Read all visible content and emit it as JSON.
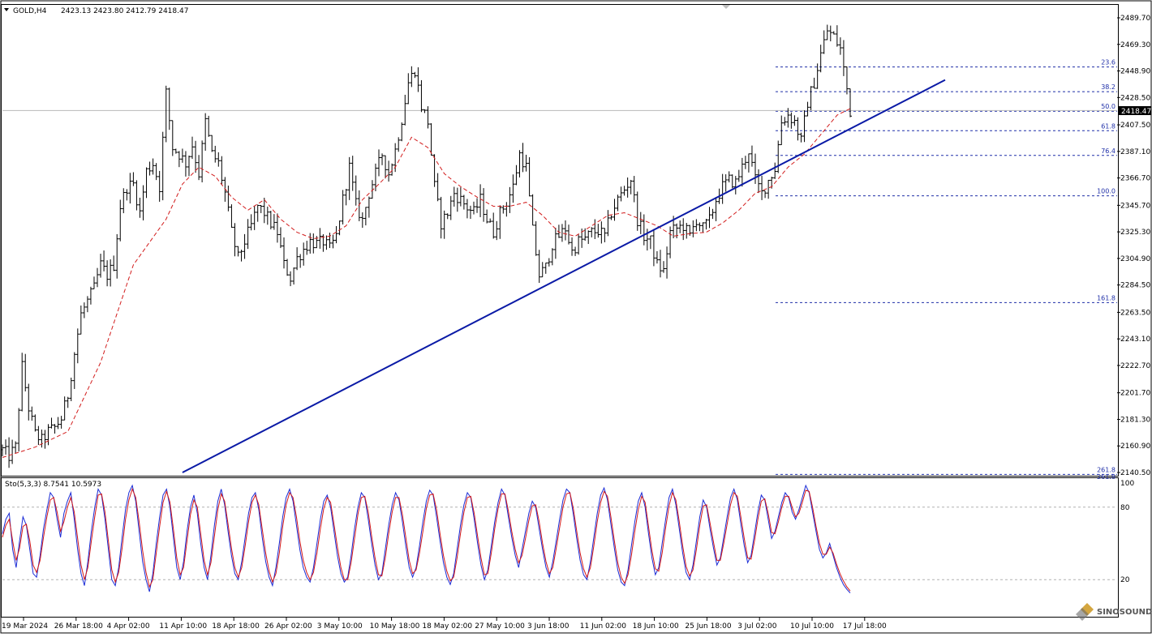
{
  "header": {
    "symbol": "GOLD,H4",
    "ohlc": "2423.13 2423.80 2412.79 2418.47"
  },
  "current_price": "2418.47",
  "indicator_label": "Sto(5,3,3) 8.7541 10.5973",
  "watermark": "SINOSOUND",
  "colors": {
    "candles": "#000000",
    "ma": "#d21c1c",
    "trendline": "#0a1aa6",
    "fib": "#1f2fa8",
    "stoch_main": "#1a2bd6",
    "stoch_signal": "#d41818"
  },
  "chart_data": [
    {
      "type": "candlestick",
      "title": "GOLD,H4",
      "ylim": [
        2140.5,
        2489.7
      ],
      "price_ticks": [
        "2489.70",
        "2469.30",
        "2448.90",
        "2428.50",
        "2407.50",
        "2387.10",
        "2366.70",
        "2345.70",
        "2325.30",
        "2304.90",
        "2284.50",
        "2263.50",
        "2243.10",
        "2222.70",
        "2201.70",
        "2181.30",
        "2160.90",
        "2140.50"
      ],
      "time_labels": [
        "19 Mar 2024",
        "26 Mar 18:00",
        "4 Apr 02:00",
        "11 Apr 10:00",
        "18 Apr 18:00",
        "26 Apr 02:00",
        "3 May 10:00",
        "10 May 18:00",
        "18 May 02:00",
        "27 May 10:00",
        "3 Jun 18:00",
        "11 Jun 02:00",
        "18 Jun 10:00",
        "25 Jun 18:00",
        "3 Jul 02:00",
        "10 Jul 10:00",
        "17 Jul 18:00"
      ],
      "price_path": [
        [
          0,
          2158
        ],
        [
          2,
          2153
        ],
        [
          4,
          2160
        ],
        [
          6,
          2222
        ],
        [
          8,
          2190
        ],
        [
          10,
          2170
        ],
        [
          12,
          2165
        ],
        [
          14,
          2172
        ],
        [
          16,
          2175
        ],
        [
          18,
          2182
        ],
        [
          20,
          2200
        ],
        [
          22,
          2232
        ],
        [
          24,
          2262
        ],
        [
          26,
          2272
        ],
        [
          28,
          2282
        ],
        [
          30,
          2300
        ],
        [
          32,
          2292
        ],
        [
          34,
          2300
        ],
        [
          36,
          2345
        ],
        [
          38,
          2360
        ],
        [
          40,
          2362
        ],
        [
          42,
          2340
        ],
        [
          44,
          2372
        ],
        [
          46,
          2378
        ],
        [
          48,
          2360
        ],
        [
          50,
          2432
        ],
        [
          52,
          2390
        ],
        [
          54,
          2385
        ],
        [
          56,
          2378
        ],
        [
          58,
          2392
        ],
        [
          60,
          2370
        ],
        [
          62,
          2410
        ],
        [
          64,
          2385
        ],
        [
          66,
          2378
        ],
        [
          68,
          2355
        ],
        [
          70,
          2325
        ],
        [
          72,
          2305
        ],
        [
          74,
          2318
        ],
        [
          76,
          2330
        ],
        [
          78,
          2345
        ],
        [
          80,
          2340
        ],
        [
          82,
          2332
        ],
        [
          84,
          2325
        ],
        [
          86,
          2300
        ],
        [
          88,
          2290
        ],
        [
          90,
          2305
        ],
        [
          92,
          2312
        ],
        [
          94,
          2318
        ],
        [
          96,
          2316
        ],
        [
          98,
          2318
        ],
        [
          100,
          2312
        ],
        [
          102,
          2322
        ],
        [
          104,
          2350
        ],
        [
          106,
          2375
        ],
        [
          108,
          2346
        ],
        [
          110,
          2334
        ],
        [
          112,
          2355
        ],
        [
          114,
          2370
        ],
        [
          116,
          2385
        ],
        [
          118,
          2370
        ],
        [
          120,
          2388
        ],
        [
          122,
          2412
        ],
        [
          124,
          2440
        ],
        [
          126,
          2450
        ],
        [
          128,
          2422
        ],
        [
          130,
          2410
        ],
        [
          132,
          2360
        ],
        [
          134,
          2332
        ],
        [
          136,
          2340
        ],
        [
          138,
          2355
        ],
        [
          140,
          2350
        ],
        [
          142,
          2344
        ],
        [
          144,
          2340
        ],
        [
          146,
          2350
        ],
        [
          148,
          2335
        ],
        [
          150,
          2325
        ],
        [
          152,
          2340
        ],
        [
          154,
          2348
        ],
        [
          156,
          2360
        ],
        [
          158,
          2385
        ],
        [
          160,
          2375
        ],
        [
          162,
          2326
        ],
        [
          164,
          2292
        ],
        [
          166,
          2298
        ],
        [
          168,
          2316
        ],
        [
          170,
          2322
        ],
        [
          172,
          2328
        ],
        [
          174,
          2310
        ],
        [
          176,
          2318
        ],
        [
          178,
          2320
        ],
        [
          180,
          2325
        ],
        [
          182,
          2326
        ],
        [
          184,
          2322
        ],
        [
          186,
          2340
        ],
        [
          188,
          2350
        ],
        [
          190,
          2358
        ],
        [
          192,
          2366
        ],
        [
          194,
          2335
        ],
        [
          196,
          2322
        ],
        [
          198,
          2318
        ],
        [
          200,
          2300
        ],
        [
          202,
          2295
        ],
        [
          204,
          2325
        ],
        [
          206,
          2328
        ],
        [
          208,
          2330
        ],
        [
          210,
          2322
        ],
        [
          212,
          2335
        ],
        [
          214,
          2328
        ],
        [
          216,
          2334
        ],
        [
          218,
          2350
        ],
        [
          220,
          2360
        ],
        [
          222,
          2365
        ],
        [
          224,
          2363
        ],
        [
          226,
          2375
        ],
        [
          228,
          2388
        ],
        [
          230,
          2365
        ],
        [
          232,
          2355
        ],
        [
          234,
          2365
        ],
        [
          236,
          2374
        ],
        [
          238,
          2410
        ],
        [
          240,
          2415
        ],
        [
          242,
          2410
        ],
        [
          244,
          2395
        ],
        [
          246,
          2425
        ],
        [
          248,
          2440
        ],
        [
          250,
          2462
        ],
        [
          252,
          2480
        ],
        [
          254,
          2475
        ],
        [
          256,
          2466
        ],
        [
          258,
          2435
        ],
        [
          259,
          2418
        ]
      ],
      "candle_count": 260,
      "moving_average": [
        [
          0,
          2152
        ],
        [
          10,
          2160
        ],
        [
          20,
          2172
        ],
        [
          30,
          2225
        ],
        [
          40,
          2300
        ],
        [
          50,
          2335
        ],
        [
          55,
          2362
        ],
        [
          60,
          2375
        ],
        [
          65,
          2368
        ],
        [
          70,
          2352
        ],
        [
          75,
          2342
        ],
        [
          80,
          2350
        ],
        [
          85,
          2335
        ],
        [
          90,
          2325
        ],
        [
          95,
          2320
        ],
        [
          100,
          2322
        ],
        [
          105,
          2330
        ],
        [
          110,
          2350
        ],
        [
          115,
          2362
        ],
        [
          120,
          2375
        ],
        [
          125,
          2398
        ],
        [
          130,
          2390
        ],
        [
          135,
          2370
        ],
        [
          140,
          2360
        ],
        [
          145,
          2352
        ],
        [
          150,
          2345
        ],
        [
          155,
          2345
        ],
        [
          160,
          2348
        ],
        [
          165,
          2338
        ],
        [
          170,
          2325
        ],
        [
          175,
          2322
        ],
        [
          180,
          2330
        ],
        [
          185,
          2338
        ],
        [
          190,
          2340
        ],
        [
          195,
          2335
        ],
        [
          200,
          2330
        ],
        [
          205,
          2322
        ],
        [
          210,
          2324
        ],
        [
          215,
          2325
        ],
        [
          220,
          2332
        ],
        [
          225,
          2342
        ],
        [
          230,
          2355
        ],
        [
          235,
          2360
        ],
        [
          240,
          2375
        ],
        [
          245,
          2385
        ],
        [
          250,
          2400
        ],
        [
          255,
          2415
        ],
        [
          259,
          2420
        ]
      ],
      "trendline": {
        "start": [
          55,
          2140.5
        ],
        "end": [
          288,
          2442
        ]
      },
      "fibonacci": {
        "levels": [
          {
            "label": "23.6",
            "price": 2452
          },
          {
            "label": "38.2",
            "price": 2433
          },
          {
            "label": "50.0",
            "price": 2418
          },
          {
            "label": "61.8",
            "price": 2403
          },
          {
            "label": "76.4",
            "price": 2384
          },
          {
            "label": "100.0",
            "price": 2353
          },
          {
            "label": "161.8",
            "price": 2271
          },
          {
            "label": "261.8",
            "price": 2139
          }
        ]
      }
    },
    {
      "type": "line",
      "title": "Sto(5,3,3) 8.7541 10.5973",
      "ylim": [
        0,
        100
      ],
      "levels": [
        "100",
        "80",
        "20"
      ],
      "series": [
        {
          "name": "Main",
          "values": [
            58,
            70,
            75,
            45,
            30,
            52,
            72,
            65,
            45,
            25,
            22,
            40,
            62,
            78,
            92,
            88,
            70,
            55,
            75,
            85,
            92,
            70,
            45,
            25,
            15,
            35,
            60,
            80,
            95,
            90,
            70,
            45,
            20,
            15,
            30,
            55,
            78,
            92,
            98,
            85,
            60,
            35,
            20,
            10,
            25,
            50,
            72,
            90,
            95,
            80,
            55,
            30,
            20,
            35,
            60,
            80,
            90,
            75,
            50,
            30,
            20,
            40,
            65,
            85,
            95,
            82,
            60,
            40,
            25,
            20,
            35,
            55,
            75,
            88,
            92,
            78,
            55,
            35,
            22,
            15,
            30,
            50,
            72,
            88,
            95,
            85,
            65,
            45,
            30,
            22,
            18,
            30,
            50,
            70,
            85,
            90,
            80,
            60,
            40,
            25,
            18,
            22,
            40,
            62,
            80,
            92,
            88,
            70,
            50,
            32,
            20,
            25,
            45,
            65,
            82,
            92,
            86,
            68,
            48,
            30,
            22,
            30,
            48,
            68,
            85,
            94,
            90,
            72,
            52,
            34,
            22,
            16,
            25,
            45,
            65,
            82,
            92,
            88,
            70,
            50,
            32,
            20,
            28,
            48,
            68,
            84,
            95,
            90,
            72,
            55,
            40,
            30,
            45,
            60,
            75,
            85,
            80,
            62,
            45,
            30,
            22,
            35,
            52,
            70,
            86,
            95,
            92,
            74,
            54,
            36,
            24,
            20,
            35,
            55,
            75,
            90,
            96,
            86,
            66,
            46,
            28,
            18,
            15,
            28,
            48,
            68,
            85,
            92,
            80,
            58,
            38,
            24,
            30,
            50,
            70,
            88,
            95,
            82,
            62,
            42,
            26,
            20,
            32,
            52,
            72,
            86,
            80,
            62,
            46,
            32,
            38,
            55,
            72,
            88,
            95,
            86,
            66,
            48,
            34,
            40,
            58,
            76,
            90,
            86,
            70,
            54,
            60,
            72,
            84,
            92,
            88,
            76,
            70,
            78,
            88,
            98,
            92,
            76,
            60,
            45,
            38,
            42,
            50,
            40,
            30,
            22,
            16,
            12,
            9
          ]
        },
        {
          "name": "Signal",
          "values": [
            55,
            65,
            70,
            52,
            36,
            46,
            64,
            66,
            52,
            32,
            26,
            36,
            55,
            72,
            86,
            88,
            76,
            60,
            68,
            80,
            88,
            76,
            54,
            32,
            20,
            30,
            52,
            72,
            90,
            91,
            76,
            52,
            28,
            18,
            26,
            46,
            70,
            86,
            95,
            88,
            68,
            44,
            26,
            14,
            20,
            42,
            64,
            84,
            93,
            84,
            62,
            38,
            24,
            30,
            52,
            74,
            86,
            80,
            58,
            36,
            24,
            34,
            56,
            78,
            91,
            85,
            66,
            46,
            30,
            22,
            30,
            48,
            68,
            84,
            90,
            82,
            62,
            42,
            27,
            18,
            25,
            42,
            64,
            82,
            92,
            88,
            72,
            52,
            36,
            26,
            20,
            26,
            42,
            62,
            79,
            88,
            84,
            66,
            47,
            30,
            20,
            20,
            34,
            54,
            74,
            88,
            89,
            76,
            56,
            38,
            24,
            23,
            38,
            58,
            76,
            88,
            88,
            74,
            55,
            36,
            25,
            28,
            42,
            60,
            79,
            90,
            91,
            78,
            58,
            40,
            27,
            19,
            22,
            38,
            58,
            76,
            88,
            89,
            75,
            56,
            38,
            24,
            25,
            42,
            62,
            79,
            91,
            91,
            77,
            60,
            45,
            34,
            40,
            54,
            69,
            81,
            82,
            68,
            50,
            35,
            25,
            30,
            46,
            63,
            80,
            91,
            92,
            79,
            60,
            42,
            29,
            22,
            30,
            48,
            68,
            84,
            93,
            89,
            72,
            52,
            34,
            22,
            17,
            24,
            40,
            60,
            78,
            89,
            84,
            64,
            44,
            29,
            27,
            42,
            63,
            81,
            92,
            86,
            68,
            48,
            31,
            23,
            28,
            45,
            65,
            81,
            82,
            67,
            51,
            36,
            36,
            50,
            66,
            82,
            92,
            89,
            72,
            54,
            38,
            37,
            52,
            70,
            85,
            87,
            75,
            59,
            58,
            68,
            80,
            89,
            89,
            80,
            72,
            75,
            84,
            94,
            93,
            80,
            64,
            50,
            41,
            41,
            47,
            42,
            33,
            25,
            19,
            14,
            10.6
          ]
        }
      ]
    }
  ]
}
